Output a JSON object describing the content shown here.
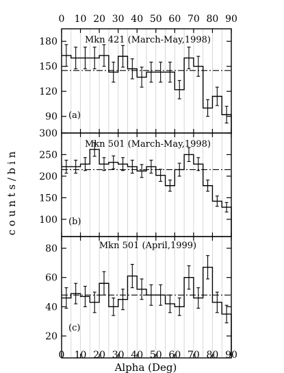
{
  "chart_data": {
    "type": "step",
    "shared_x": {
      "label": "Alpha (Deg)",
      "range": [
        0,
        90
      ],
      "ticks": [
        0,
        10,
        20,
        30,
        40,
        50,
        60,
        70,
        80,
        90
      ],
      "bin_edges": [
        0,
        5,
        10,
        15,
        20,
        25,
        30,
        35,
        40,
        45,
        50,
        55,
        60,
        65,
        70,
        75,
        80,
        85,
        90
      ],
      "bin_centers": [
        2.5,
        7.5,
        12.5,
        17.5,
        22.5,
        27.5,
        32.5,
        37.5,
        42.5,
        47.5,
        52.5,
        57.5,
        62.5,
        67.5,
        72.5,
        77.5,
        82.5,
        87.5
      ],
      "grid": "vertical"
    },
    "y_label": "c o u n t s / b i n",
    "panels": [
      {
        "id": "a",
        "panel_label": "(a)",
        "title": "Mkn 421 (March-May,1998)",
        "ylim": [
          70,
          195
        ],
        "yticks": [
          90,
          120,
          150,
          180
        ],
        "counts": [
          163,
          160,
          160,
          160,
          163,
          143,
          162,
          147,
          137,
          143,
          143,
          143,
          122,
          160,
          150,
          100,
          114,
          92
        ],
        "errors": [
          13,
          13,
          13,
          13,
          13,
          12,
          13,
          12,
          12,
          12,
          12,
          12,
          11,
          13,
          12,
          10,
          11,
          10
        ],
        "background_level": 145
      },
      {
        "id": "b",
        "panel_label": "(b)",
        "title": "Mkn 501 (March-May,1998)",
        "ylim": [
          60,
          300
        ],
        "yticks": [
          100,
          150,
          200,
          250,
          300
        ],
        "counts": [
          222,
          222,
          228,
          262,
          228,
          232,
          228,
          222,
          212,
          222,
          202,
          178,
          215,
          250,
          228,
          178,
          142,
          128
        ],
        "errors": [
          15,
          15,
          15,
          16,
          15,
          15,
          15,
          15,
          15,
          15,
          14,
          13,
          15,
          16,
          15,
          13,
          12,
          11
        ],
        "background_level": 215
      },
      {
        "id": "c",
        "panel_label": "(c)",
        "title": "Mkn 501 (April,1999)",
        "ylim": [
          5,
          88
        ],
        "yticks": [
          20,
          40,
          60,
          80
        ],
        "counts": [
          46,
          49,
          47,
          43,
          56,
          40,
          45,
          61,
          52,
          48,
          48,
          42,
          40,
          60,
          46,
          67,
          43,
          35
        ],
        "errors": [
          7,
          7,
          7,
          7,
          8,
          6,
          7,
          8,
          7,
          7,
          7,
          6,
          6,
          8,
          7,
          8,
          7,
          6
        ],
        "background_level": 48
      }
    ]
  }
}
